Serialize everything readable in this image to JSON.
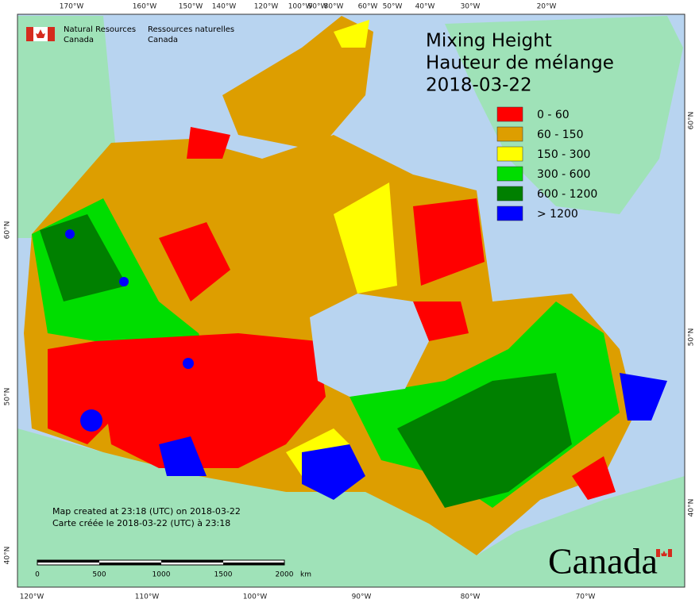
{
  "header": {
    "agency_en": [
      "Natural Resources",
      "Canada"
    ],
    "agency_fr": [
      "Ressources naturelles",
      "Canada"
    ]
  },
  "title": [
    "Mixing Height",
    "Hauteur de mélange",
    "2018-03-22"
  ],
  "legend": [
    {
      "label": "0 - 60",
      "color": "#ff0000"
    },
    {
      "label": "60 - 150",
      "color": "#dd9e00"
    },
    {
      "label": "150 - 300",
      "color": "#ffff00"
    },
    {
      "label": "300 - 600",
      "color": "#00dd00"
    },
    {
      "label": "600 - 1200",
      "color": "#008000"
    },
    {
      "label": "> 1200",
      "color": "#0000ff"
    }
  ],
  "graticule": {
    "top": [
      "170°W",
      "160°W",
      "150°W",
      "140°W",
      "120°W",
      "100°W",
      "90°W",
      "80°W",
      "60°W",
      "50°W",
      "40°W",
      "30°W",
      "20°W"
    ],
    "bottom": [
      "120°W",
      "110°W",
      "100°W",
      "90°W",
      "80°W",
      "70°W"
    ],
    "left": [
      "60°N",
      "50°N",
      "40°N"
    ],
    "right": [
      "60°N",
      "50°N",
      "40°N"
    ]
  },
  "notes": [
    "Map created at 23:18 (UTC) on 2018-03-22",
    "Carte créée le 2018-03-22 (UTC) à 23:18"
  ],
  "scale_bar": {
    "labels": [
      "0",
      "500",
      "1000",
      "1500",
      "2000"
    ],
    "unit": "km"
  },
  "wordmark": "Canada"
}
